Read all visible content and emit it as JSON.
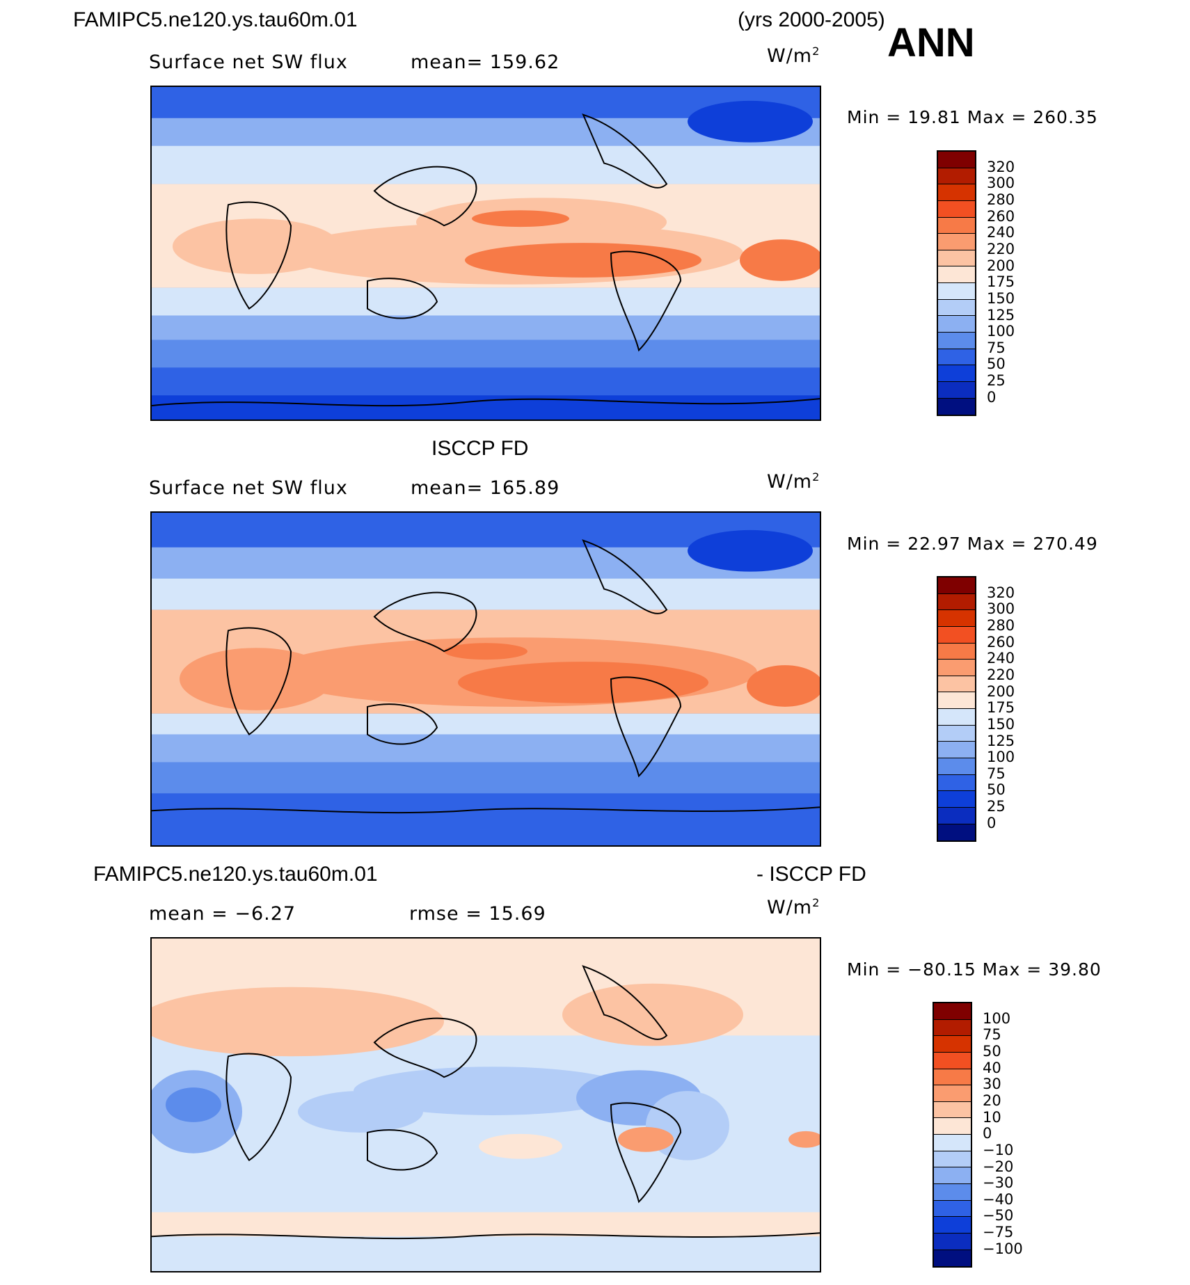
{
  "header": {
    "case_name": "FAMIPC5.ne120.ys.tau60m.01",
    "years": "(yrs 2000-2005)",
    "season": "ANN"
  },
  "panels": [
    {
      "title": "",
      "variable": "Surface net SW flux",
      "stat_label": "mean=  159.62",
      "units_base": "W/m",
      "units_exp": "2",
      "minmax": "Min  =    19.81  Max  =  260.35",
      "levels": [
        "320",
        "300",
        "280",
        "260",
        "240",
        "220",
        "200",
        "175",
        "150",
        "125",
        "100",
        "75",
        "50",
        "25",
        "0"
      ],
      "colors": [
        "#7f0000",
        "#b21c00",
        "#d63300",
        "#f25022",
        "#f77a47",
        "#fa9c70",
        "#fcc3a3",
        "#fde6d6",
        "#d5e6fa",
        "#b3cdf7",
        "#8cb0f2",
        "#5c8ceb",
        "#2f62e5",
        "#0e3fd9",
        "#0b2dbf",
        "#000f80"
      ]
    },
    {
      "title": "ISCCP FD",
      "variable": "Surface net SW flux",
      "stat_label": "mean=  165.89",
      "units_base": "W/m",
      "units_exp": "2",
      "minmax": "Min  =    22.97  Max  =  270.49",
      "levels": [
        "320",
        "300",
        "280",
        "260",
        "240",
        "220",
        "200",
        "175",
        "150",
        "125",
        "100",
        "75",
        "50",
        "25",
        "0"
      ],
      "colors": [
        "#7f0000",
        "#b21c00",
        "#d63300",
        "#f25022",
        "#f77a47",
        "#fa9c70",
        "#fcc3a3",
        "#fde6d6",
        "#d5e6fa",
        "#b3cdf7",
        "#8cb0f2",
        "#5c8ceb",
        "#2f62e5",
        "#0e3fd9",
        "#0b2dbf",
        "#000f80"
      ]
    },
    {
      "title_left": "FAMIPC5.ne120.ys.tau60m.01",
      "title_right": "- ISCCP FD",
      "mean_label": "mean  =    −6.27",
      "rmse_label": "rmse  =    15.69",
      "units_base": "W/m",
      "units_exp": "2",
      "minmax": "Min  = −80.15  Max  =    39.80",
      "levels": [
        "100",
        "75",
        "50",
        "40",
        "30",
        "20",
        "10",
        "0",
        "−10",
        "−20",
        "−30",
        "−40",
        "−50",
        "−75",
        "−100"
      ],
      "colors": [
        "#7f0000",
        "#b21c00",
        "#d63300",
        "#f25022",
        "#f77a47",
        "#fa9c70",
        "#fcc3a3",
        "#fde6d6",
        "#d5e6fa",
        "#b3cdf7",
        "#8cb0f2",
        "#5c8ceb",
        "#2f62e5",
        "#0e3fd9",
        "#0b2dbf",
        "#000f80"
      ]
    }
  ]
}
